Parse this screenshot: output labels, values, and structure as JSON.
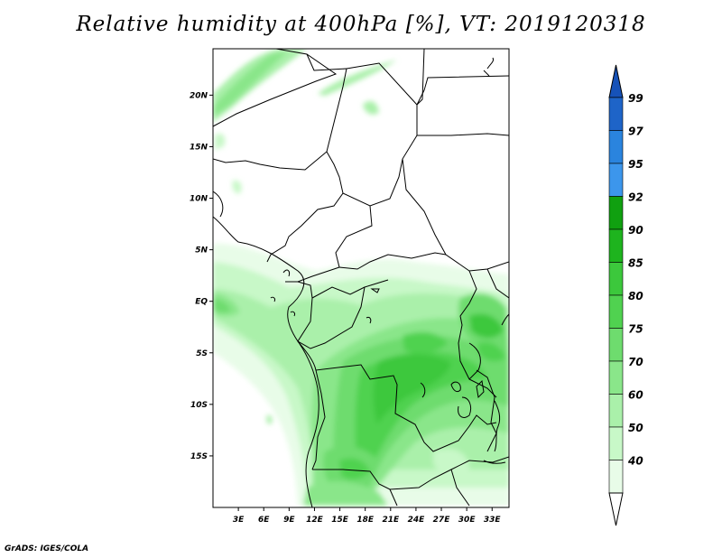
{
  "title": "Relative humidity at 400hPa [%], VT: 2019120318",
  "credit": "GrADS: IGES/COLA",
  "map": {
    "lon_ticks": [
      "3E",
      "6E",
      "9E",
      "12E",
      "15E",
      "18E",
      "21E",
      "24E",
      "27E",
      "30E",
      "33E"
    ],
    "lat_ticks": [
      "20N",
      "15N",
      "10N",
      "5N",
      "EQ",
      "5S",
      "10S",
      "15S"
    ],
    "lon_range": [
      0,
      35
    ],
    "lat_range": [
      -20,
      24.5
    ]
  },
  "colorbar": {
    "labels": [
      "99",
      "97",
      "95",
      "92",
      "90",
      "85",
      "80",
      "75",
      "70",
      "60",
      "50",
      "40"
    ],
    "colors": {
      "c99": "#1e64c8",
      "c97": "#2a84de",
      "c95": "#3c96ec",
      "c92": "#10a010",
      "c90": "#1eb41e",
      "c85": "#3cc83c",
      "c80": "#50d250",
      "c75": "#6edc6e",
      "c70": "#8ae68a",
      "c60": "#aaf0aa",
      "c50": "#c8f8c8",
      "c40": "#e8fce8"
    }
  }
}
